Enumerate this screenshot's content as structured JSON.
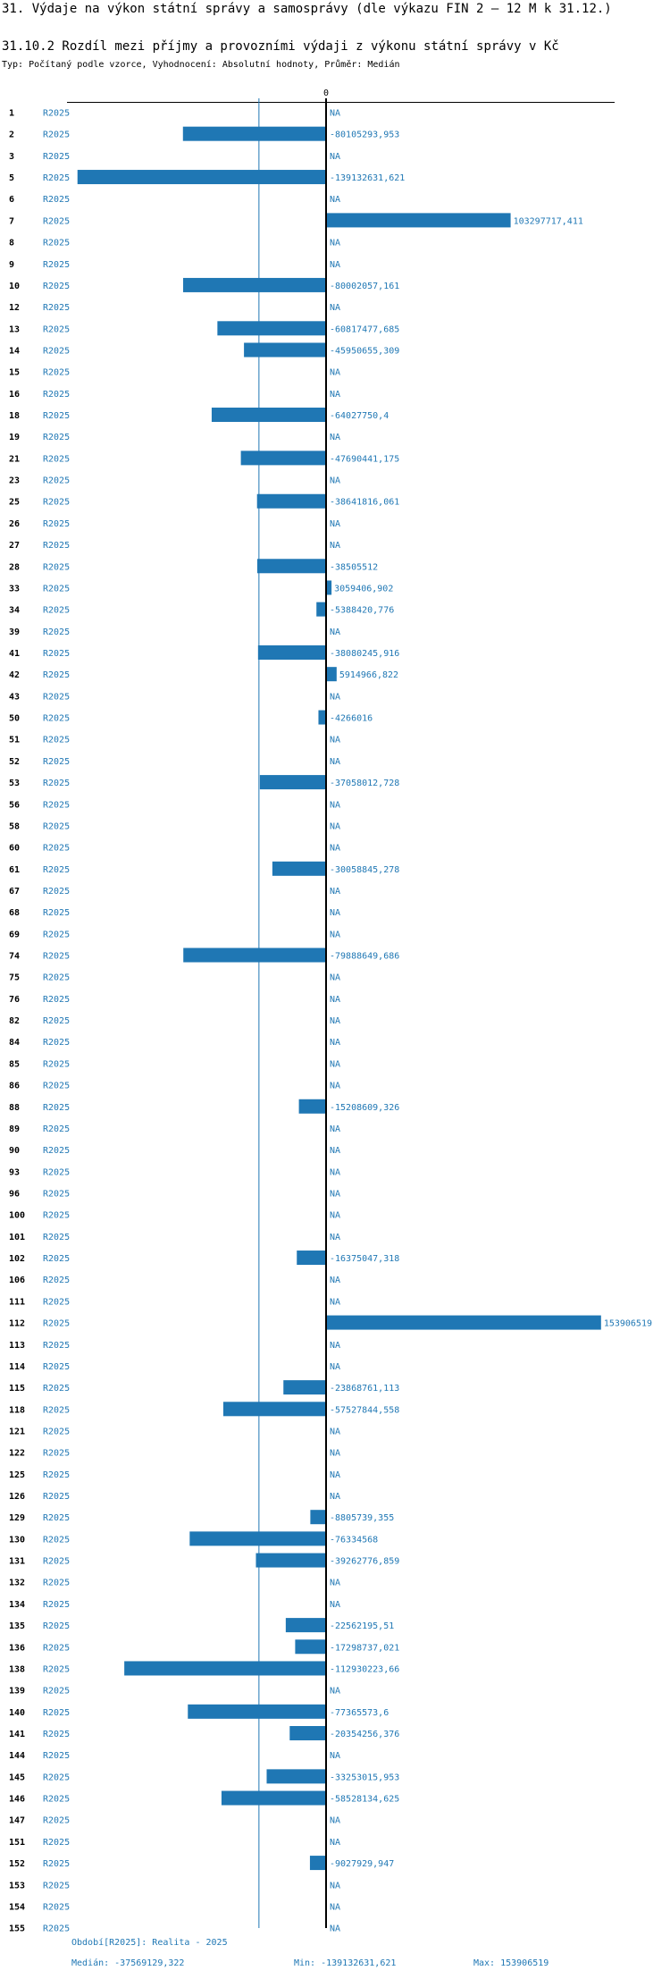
{
  "page": {
    "title": "31. Výdaje na výkon státní správy a samosprávy (dle výkazu FIN 2 – 12 M k 31.12.)",
    "subtitle": "31.10.2 Rozdíl mezi příjmy a provozními výdaji z výkonu státní správy v Kč",
    "type_line": "Typ: Počítaný podle vzorce, Vyhodnocení: Absolutní hodnoty, Průměr: Medián"
  },
  "colors": {
    "bar": "#1f77b4",
    "text": "#1f77b4",
    "axis": "#000000",
    "median_line": "#1f77b4"
  },
  "chart_data": {
    "type": "bar",
    "orientation": "horizontal",
    "series_label": "R2025",
    "zero_label": "0",
    "na_label": "NA",
    "median": -37569129.322,
    "xlim": [
      -145000000,
      160000000
    ],
    "categories": [
      "1",
      "2",
      "3",
      "5",
      "6",
      "7",
      "8",
      "9",
      "10",
      "12",
      "13",
      "14",
      "15",
      "16",
      "18",
      "19",
      "21",
      "23",
      "25",
      "26",
      "27",
      "28",
      "33",
      "34",
      "39",
      "41",
      "42",
      "43",
      "50",
      "51",
      "52",
      "53",
      "56",
      "58",
      "60",
      "61",
      "67",
      "68",
      "69",
      "74",
      "75",
      "76",
      "82",
      "84",
      "85",
      "86",
      "88",
      "89",
      "90",
      "93",
      "96",
      "100",
      "101",
      "102",
      "106",
      "111",
      "112",
      "113",
      "114",
      "115",
      "118",
      "121",
      "122",
      "125",
      "126",
      "129",
      "130",
      "131",
      "132",
      "134",
      "135",
      "136",
      "138",
      "139",
      "140",
      "141",
      "144",
      "145",
      "146",
      "147",
      "151",
      "152",
      "153",
      "154",
      "155"
    ],
    "values": [
      null,
      -80105293.953,
      null,
      -139132631.621,
      null,
      103297717.411,
      null,
      null,
      -80002057.161,
      null,
      -60817477.685,
      -45950655.309,
      null,
      null,
      -64027750.4,
      null,
      -47690441.175,
      null,
      -38641816.061,
      null,
      null,
      -38505512,
      3059406.902,
      -5388420.776,
      null,
      -38080245.916,
      5914966.822,
      null,
      -4266016,
      null,
      null,
      -37058012.728,
      null,
      null,
      null,
      -30058845.278,
      null,
      null,
      null,
      -79888649.686,
      null,
      null,
      null,
      null,
      null,
      null,
      -15208609.326,
      null,
      null,
      null,
      null,
      null,
      null,
      -16375047.318,
      null,
      null,
      153906519,
      null,
      null,
      -23868761.113,
      -57527844.558,
      null,
      null,
      null,
      null,
      -8805739.355,
      -76334568,
      -39262776.859,
      null,
      null,
      -22562195.51,
      -17298737.021,
      -112930223.66,
      null,
      -77365573.6,
      -20354256.376,
      null,
      -33253015.953,
      -58528134.625,
      null,
      null,
      -9027929.947,
      null,
      null,
      null
    ],
    "labels": [
      "NA",
      "-80105293,953",
      "NA",
      "-139132631,621",
      "NA",
      "103297717,411",
      "NA",
      "NA",
      "-80002057,161",
      "NA",
      "-60817477,685",
      "-45950655,309",
      "NA",
      "NA",
      "-64027750,4",
      "NA",
      "-47690441,175",
      "NA",
      "-38641816,061",
      "NA",
      "NA",
      "-38505512",
      "3059406,902",
      "-5388420,776",
      "NA",
      "-38080245,916",
      "5914966,822",
      "NA",
      "-4266016",
      "NA",
      "NA",
      "-37058012,728",
      "NA",
      "NA",
      "NA",
      "-30058845,278",
      "NA",
      "NA",
      "NA",
      "-79888649,686",
      "NA",
      "NA",
      "NA",
      "NA",
      "NA",
      "NA",
      "-15208609,326",
      "NA",
      "NA",
      "NA",
      "NA",
      "NA",
      "NA",
      "-16375047,318",
      "NA",
      "NA",
      "153906519",
      "NA",
      "NA",
      "-23868761,113",
      "-57527844,558",
      "NA",
      "NA",
      "NA",
      "NA",
      "-8805739,355",
      "-76334568",
      "-39262776,859",
      "NA",
      "NA",
      "-22562195,51",
      "-17298737,021",
      "-112930223,66",
      "NA",
      "-77365573,6",
      "-20354256,376",
      "NA",
      "-33253015,953",
      "-58528134,625",
      "NA",
      "NA",
      "-9027929,947",
      "NA",
      "NA",
      "NA"
    ]
  },
  "footer": {
    "period": "Období[R2025]: Realita - 2025",
    "median": "Medián: -37569129,322",
    "min": "Min: -139132631,621",
    "max": "Max: 153906519"
  }
}
